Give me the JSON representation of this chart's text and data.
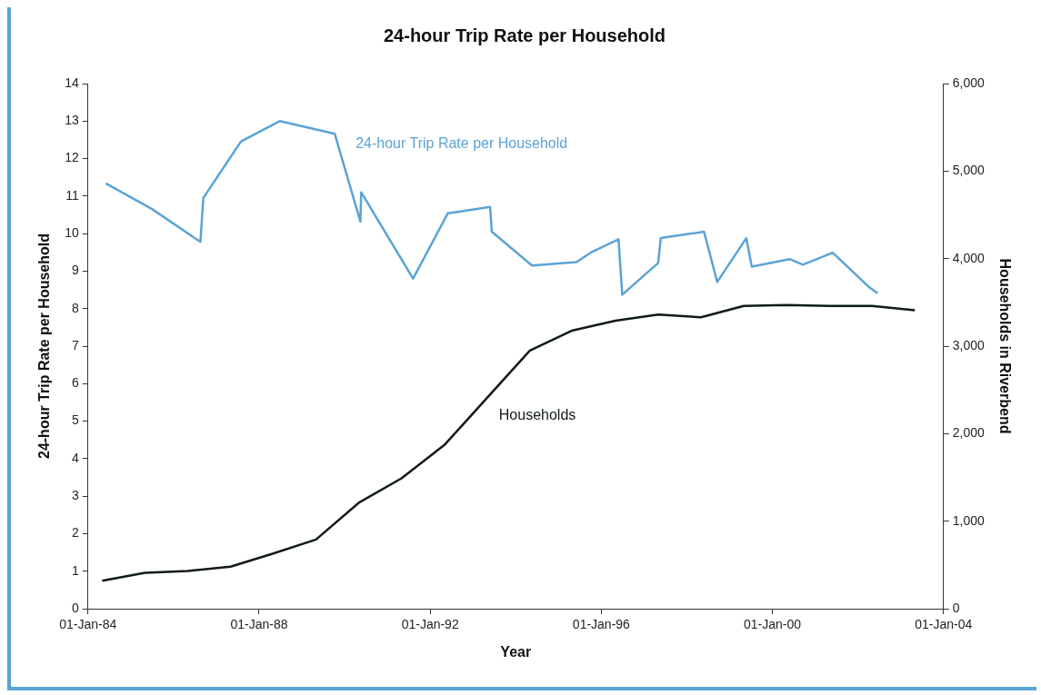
{
  "chart_data": {
    "type": "line",
    "title": "24-hour Trip Rate per Household",
    "xlabel": "Year",
    "ylabel": "24-hour Trip Rate per Household",
    "y2label": "Households in Riverbend",
    "xlim": [
      "1984-01-01",
      "2004-01-01"
    ],
    "xticks": [
      {
        "value": "1984-01-01",
        "label": "01-Jan-84"
      },
      {
        "value": "1988-01-01",
        "label": "01-Jan-88"
      },
      {
        "value": "1992-01-01",
        "label": "01-Jan-92"
      },
      {
        "value": "1996-01-01",
        "label": "01-Jan-96"
      },
      {
        "value": "2000-01-01",
        "label": "01-Jan-00"
      },
      {
        "value": "2004-01-01",
        "label": "01-Jan-04"
      }
    ],
    "ylim": [
      0,
      14
    ],
    "yticks": [
      0,
      1,
      2,
      3,
      4,
      5,
      6,
      7,
      8,
      9,
      10,
      11,
      12,
      13,
      14
    ],
    "y2lim": [
      0,
      6000
    ],
    "y2ticks": [
      0,
      {
        "value": 1000,
        "label": "1,000"
      },
      {
        "value": 2000,
        "label": "2,000"
      },
      {
        "value": 3000,
        "label": "3,000"
      },
      {
        "value": 4000,
        "label": "4,000"
      },
      {
        "value": 5000,
        "label": "5,000"
      },
      {
        "value": 6000,
        "label": "6,000"
      }
    ],
    "grid": false,
    "legend": false,
    "marker": "none",
    "line_style": "solid",
    "series": [
      {
        "name": "24-hour Trip Rate per Household",
        "color": "#5ba3d6",
        "x": [
          "1984-06-01",
          "1985-06-28",
          "1986-08-18",
          "1986-09-12",
          "1987-07-31",
          "1988-06-25",
          "1989-10-08",
          "1990-05-15",
          "1990-05-22",
          "1991-08-08",
          "1992-05-30",
          "1993-05-27",
          "1993-06-10",
          "1994-05-19",
          "1995-06-03",
          "1995-10-01",
          "1996-05-27",
          "1996-06-28",
          "1997-05-01",
          "1997-05-23",
          "1998-05-27",
          "1998-09-17",
          "1999-05-23",
          "1999-07-09",
          "2000-05-27",
          "2000-09-17",
          "2001-05-30",
          "2002-04-10",
          "2002-06-18"
        ],
        "values": [
          11.34,
          10.66,
          9.78,
          10.95,
          12.46,
          13.0,
          12.66,
          10.32,
          11.1,
          8.8,
          10.54,
          10.71,
          10.05,
          9.15,
          9.24,
          9.49,
          9.85,
          8.37,
          9.22,
          9.88,
          10.05,
          8.71,
          9.88,
          9.12,
          9.32,
          9.17,
          9.49,
          8.56,
          8.41
        ]
      },
      {
        "name": "Households",
        "color": "#111a1a",
        "axis": "y2",
        "x": [
          "1984-05",
          "1985-05",
          "1986-05",
          "1987-05",
          "1988-05",
          "1989-05",
          "1990-05",
          "1991-05",
          "1992-05",
          "1993-05",
          "1994-05",
          "1995-05",
          "1996-05",
          "1997-05",
          "1998-05",
          "1999-05",
          "2000-05",
          "2001-05",
          "2002-05",
          "2003-05"
        ],
        "values": [
          320,
          410,
          430,
          480,
          630,
          790,
          1210,
          1490,
          1870,
          2410,
          2950,
          3180,
          3290,
          3360,
          3330,
          3460,
          3470,
          3460,
          3460,
          3410
        ]
      }
    ]
  }
}
